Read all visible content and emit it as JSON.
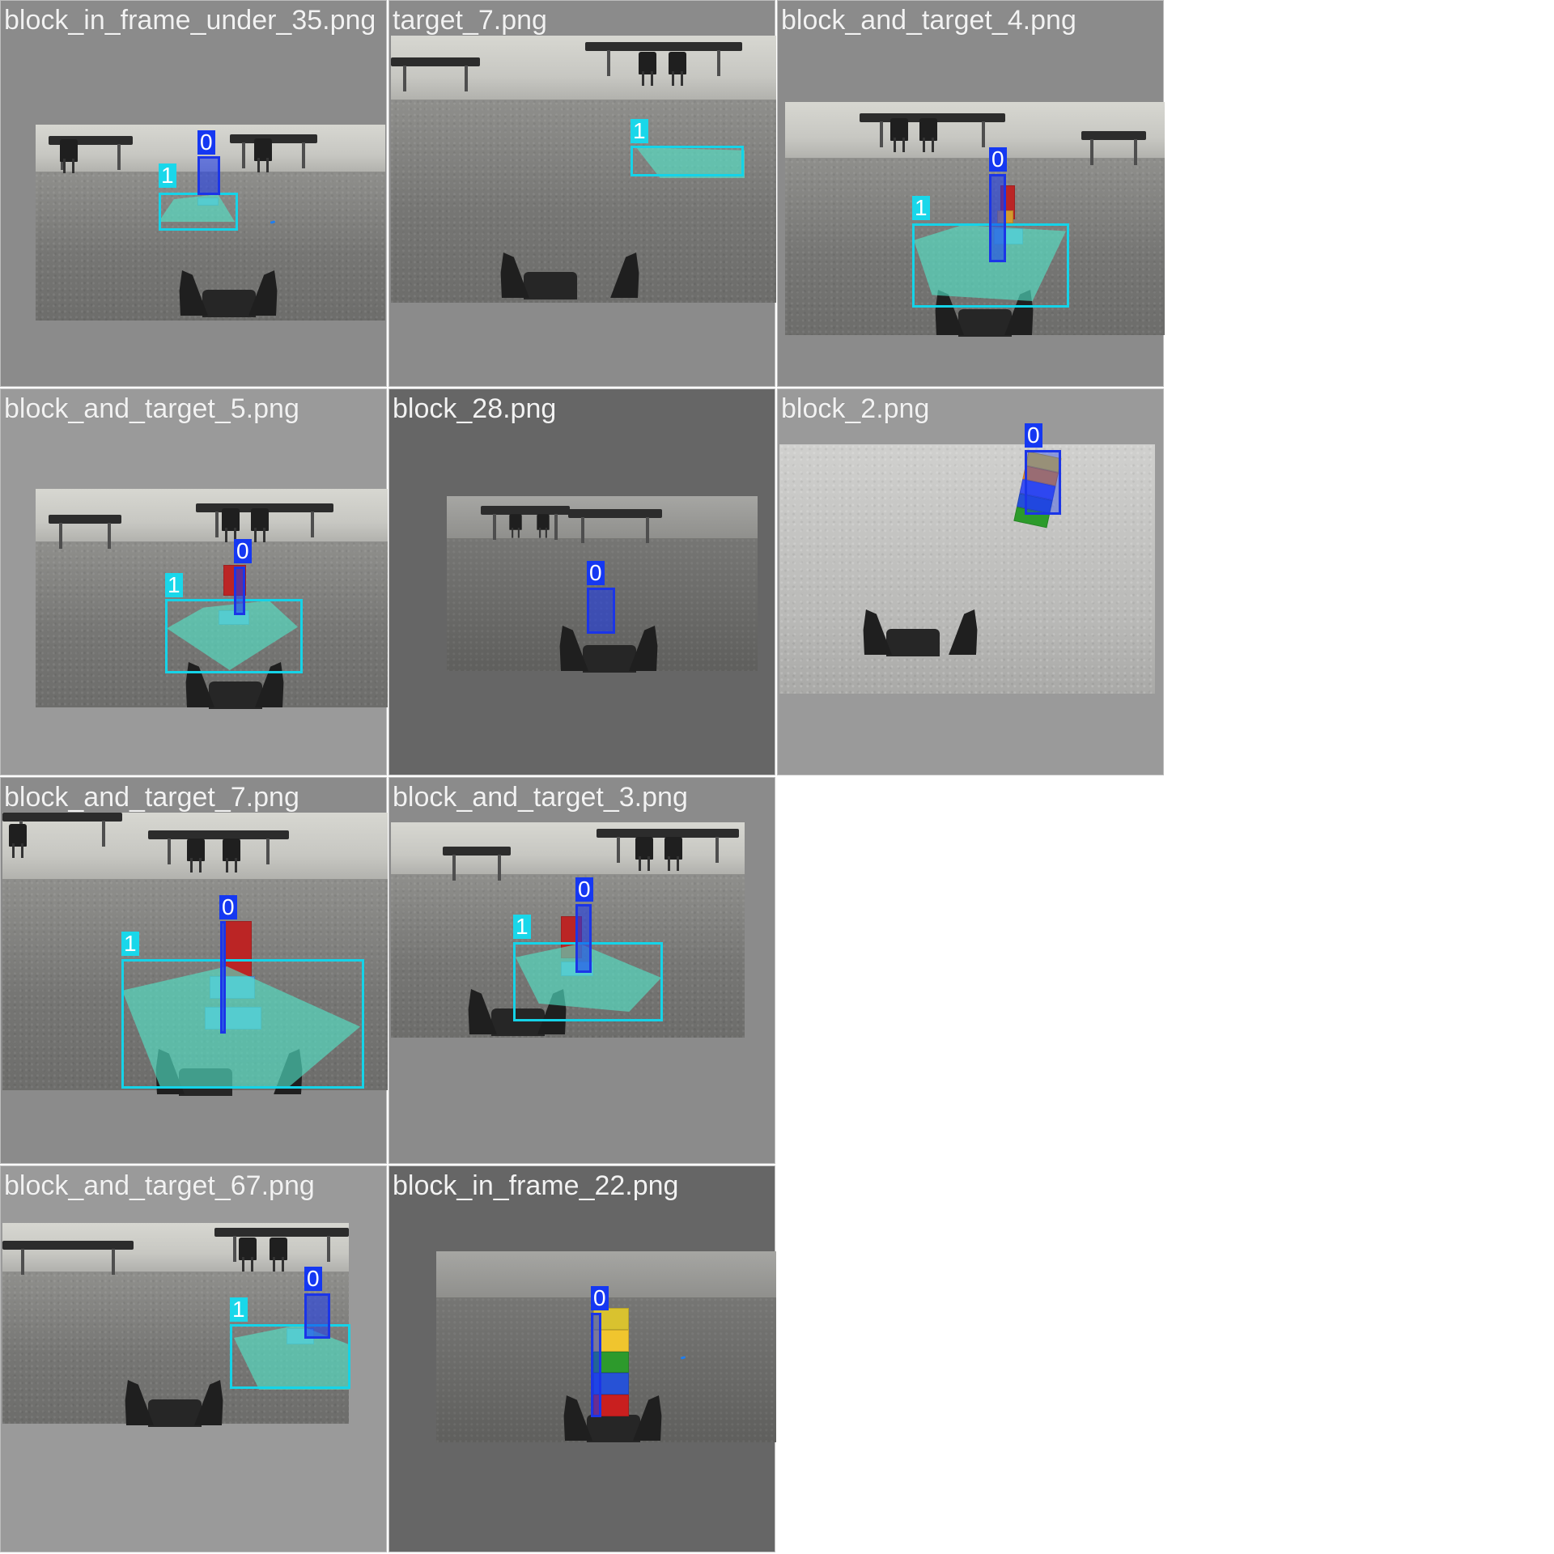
{
  "tiles": [
    {
      "filename": "block_in_frame_under_35.png",
      "label0": "0",
      "label1": "1"
    },
    {
      "filename": "target_7.png",
      "label1": "1"
    },
    {
      "filename": "block_and_target_4.png",
      "label0": "0",
      "label1": "1"
    },
    {
      "filename": "block_and_target_5.png",
      "label0": "0",
      "label1": "1"
    },
    {
      "filename": "block_28.png",
      "label0": "0"
    },
    {
      "filename": "block_2.png",
      "label0": "0"
    },
    {
      "filename": "block_and_target_7.png",
      "label0": "0",
      "label1": "1"
    },
    {
      "filename": "block_and_target_3.png",
      "label0": "0",
      "label1": "1"
    },
    {
      "filename": "block_and_target_67.png",
      "label0": "0",
      "label1": "1"
    },
    {
      "filename": "block_in_frame_22.png",
      "label0": "0"
    }
  ],
  "colors": {
    "background": "#ffffff",
    "panel_light": "#9a9a9a",
    "panel_medium": "#8b8b8b",
    "panel_dark": "#666666",
    "block_class": "#1538f2",
    "target_class": "#19d7ea",
    "target_fill": "#53e7c9"
  }
}
